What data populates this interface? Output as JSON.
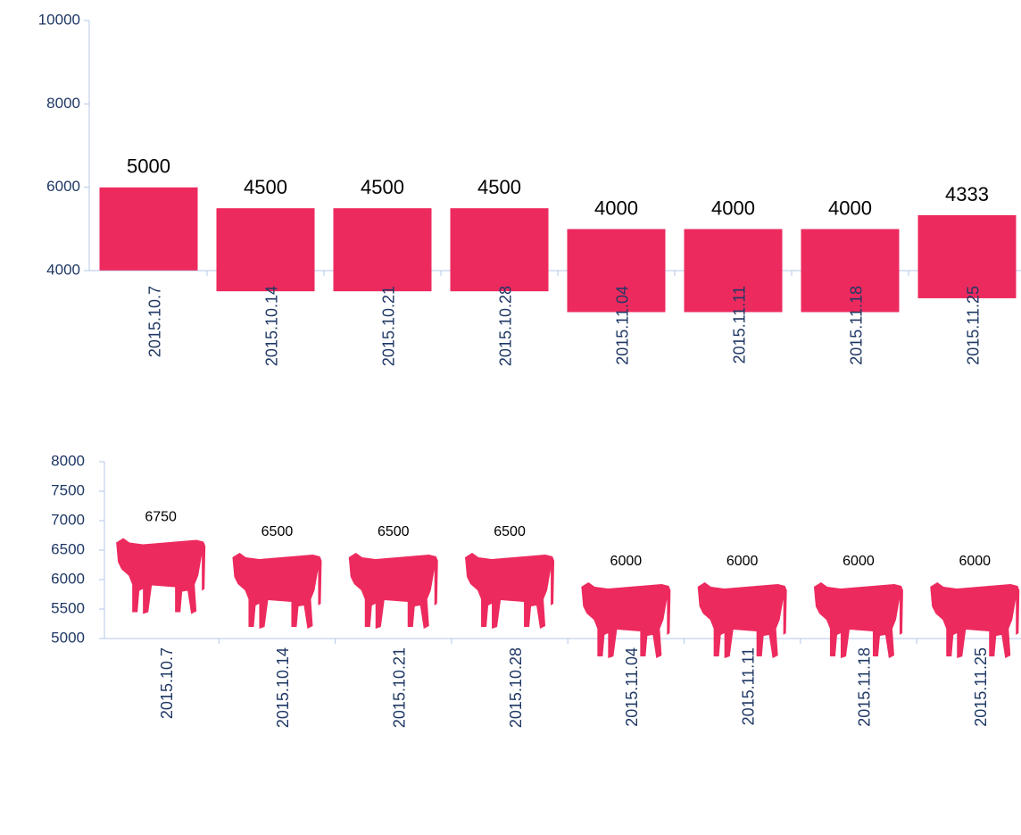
{
  "chart_data": [
    {
      "type": "pictograph",
      "marker": "square",
      "color": "#ed2a5e",
      "categories": [
        "2015.10.7",
        "2015.10.14",
        "2015.10.21",
        "2015.10.28",
        "2015.11.04",
        "2015.11.11",
        "2015.11.18",
        "2015.11.25"
      ],
      "values": [
        5000,
        4500,
        4500,
        4500,
        4000,
        4000,
        4000,
        4333
      ],
      "ylim": [
        4000,
        10000
      ],
      "yticks": [
        4000,
        6000,
        8000,
        10000
      ]
    },
    {
      "type": "pictograph",
      "marker": "cow",
      "color": "#ed2a5e",
      "categories": [
        "2015.10.7",
        "2015.10.14",
        "2015.10.21",
        "2015.10.28",
        "2015.11.04",
        "2015.11.11",
        "2015.11.18",
        "2015.11.25"
      ],
      "values": [
        6750,
        6500,
        6500,
        6500,
        6000,
        6000,
        6000,
        6000
      ],
      "ylim": [
        5000,
        8000
      ],
      "yticks": [
        5000,
        5500,
        6000,
        6500,
        7000,
        7500,
        8000
      ]
    }
  ]
}
